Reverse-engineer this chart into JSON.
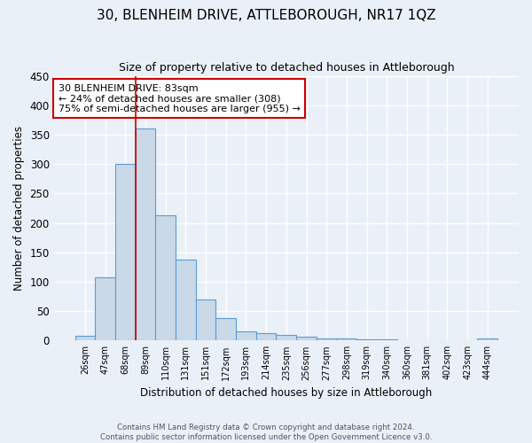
{
  "title": "30, BLENHEIM DRIVE, ATTLEBOROUGH, NR17 1QZ",
  "subtitle": "Size of property relative to detached houses in Attleborough",
  "xlabel": "Distribution of detached houses by size in Attleborough",
  "ylabel": "Number of detached properties",
  "bar_labels": [
    "26sqm",
    "47sqm",
    "68sqm",
    "89sqm",
    "110sqm",
    "131sqm",
    "151sqm",
    "172sqm",
    "193sqm",
    "214sqm",
    "235sqm",
    "256sqm",
    "277sqm",
    "298sqm",
    "319sqm",
    "340sqm",
    "360sqm",
    "381sqm",
    "402sqm",
    "423sqm",
    "444sqm"
  ],
  "bar_values": [
    8,
    108,
    300,
    360,
    213,
    137,
    70,
    38,
    15,
    12,
    9,
    6,
    4,
    3,
    2,
    2,
    1,
    1,
    0,
    0,
    4
  ],
  "bar_color": "#c9d9e8",
  "bar_edge_color": "#5b9bd5",
  "vline_color": "#cc0000",
  "annotation_text": "30 BLENHEIM DRIVE: 83sqm\n← 24% of detached houses are smaller (308)\n75% of semi-detached houses are larger (955) →",
  "annotation_box_color": "#ffffff",
  "annotation_box_edge": "#cc0000",
  "ylim": [
    0,
    450
  ],
  "yticks": [
    0,
    50,
    100,
    150,
    200,
    250,
    300,
    350,
    400,
    450
  ],
  "footer": "Contains HM Land Registry data © Crown copyright and database right 2024.\nContains public sector information licensed under the Open Government Licence v3.0.",
  "bg_color": "#eaf0f7",
  "plot_bg_color": "#eaf0f7",
  "grid_color": "#ffffff",
  "title_fontsize": 11,
  "subtitle_fontsize": 9,
  "annotation_fontsize": 8
}
